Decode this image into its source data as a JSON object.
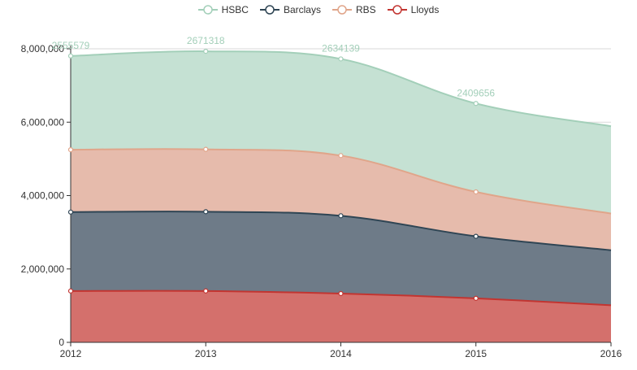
{
  "chart_data": {
    "type": "area",
    "stacked": true,
    "categories": [
      "2012",
      "2013",
      "2014",
      "2015",
      "2016"
    ],
    "series": [
      {
        "name": "Lloyds",
        "values": [
          1400000,
          1400000,
          1330000,
          1200000,
          1010000
        ],
        "line_color": "#c23531",
        "fill_color": "#d4706c"
      },
      {
        "name": "Barclays",
        "values": [
          2150000,
          2160000,
          2120000,
          1690000,
          1500000
        ],
        "line_color": "#2f4554",
        "fill_color": "#6e7b88"
      },
      {
        "name": "RBS",
        "values": [
          1700000,
          1700000,
          1640000,
          1210000,
          1000000
        ],
        "line_color": "#e0a58a",
        "fill_color": "#e6bbac"
      },
      {
        "name": "HSBC",
        "values": [
          2555579,
          2671318,
          2634139,
          2409656,
          2380000
        ],
        "line_color": "#a3cfb9",
        "fill_color": "#c5e1d3"
      }
    ],
    "legend_order": [
      "HSBC",
      "Barclays",
      "RBS",
      "Lloyds"
    ],
    "data_labels": {
      "series": "HSBC",
      "labels": [
        "2555579",
        "2671318",
        "2634139",
        "2409656",
        ""
      ],
      "color": "#a3cfb9"
    },
    "y_ticks": [
      "0",
      "2,000,000",
      "4,000,000",
      "6,000,000",
      "8,000,000"
    ],
    "ylim": [
      0,
      8000000
    ],
    "grid": true,
    "legend_position": "top-center",
    "title": "",
    "xlabel": "",
    "ylabel": ""
  }
}
